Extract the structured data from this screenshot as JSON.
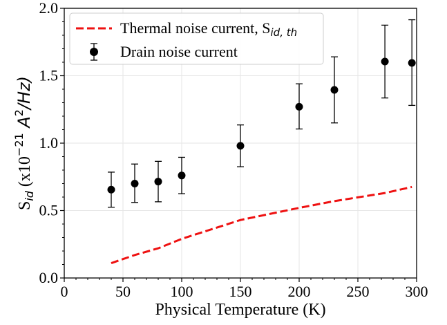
{
  "chart_data": {
    "type": "line",
    "xlabel": "Physical Temperature (K)",
    "ylabel": {
      "main": "S",
      "sub": "id",
      "prefix": " (x10",
      "exp": "−21",
      "unit_a": " A",
      "unit_exp": "2",
      "unit_rest": "/Hz)"
    },
    "xlim": [
      0,
      300
    ],
    "ylim": [
      0.0,
      2.0
    ],
    "x_ticks": [
      0,
      50,
      100,
      150,
      200,
      250,
      300
    ],
    "x_tick_labels": [
      "0",
      "50",
      "100",
      "150",
      "200",
      "250",
      "300"
    ],
    "y_ticks": [
      0.0,
      0.5,
      1.0,
      1.5,
      2.0
    ],
    "y_tick_labels": [
      "0.0",
      "0.5",
      "1.0",
      "1.5",
      "2.0"
    ],
    "x_minor_step": 10,
    "y_minor_step": 0.1,
    "grid": true,
    "legend_position": "top-left",
    "series": [
      {
        "name": {
          "main": "Thermal noise current, S",
          "sub": "id, th"
        },
        "kind": "line",
        "style": "dashed",
        "color": "#ee1111",
        "x": [
          40,
          60,
          80,
          100,
          150,
          200,
          230,
          273,
          296
        ],
        "y": [
          0.11,
          0.17,
          0.22,
          0.29,
          0.43,
          0.52,
          0.57,
          0.63,
          0.675
        ]
      },
      {
        "name": {
          "main": "Drain noise current",
          "sub": ""
        },
        "kind": "errorbar",
        "color": "#000000",
        "x": [
          40,
          60,
          80,
          100,
          150,
          200,
          230,
          273,
          296
        ],
        "y": [
          0.655,
          0.7,
          0.715,
          0.76,
          0.98,
          1.27,
          1.395,
          1.605,
          1.595
        ],
        "err_low": [
          0.525,
          0.56,
          0.565,
          0.625,
          0.825,
          1.105,
          1.15,
          1.335,
          1.28
        ],
        "err_high": [
          0.785,
          0.845,
          0.865,
          0.895,
          1.135,
          1.44,
          1.64,
          1.875,
          1.915
        ]
      }
    ]
  }
}
